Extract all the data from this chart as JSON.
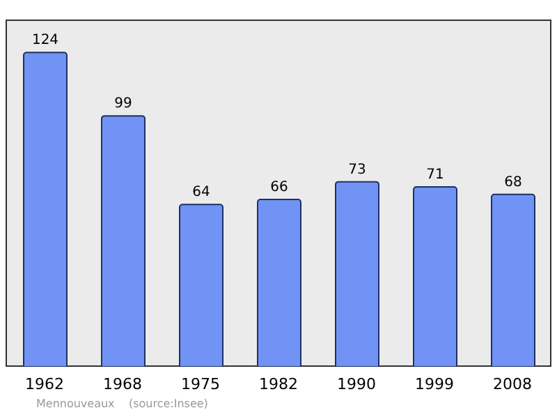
{
  "chart_data": {
    "type": "bar",
    "categories": [
      "1962",
      "1968",
      "1975",
      "1982",
      "1990",
      "1999",
      "2008"
    ],
    "values": [
      124,
      99,
      64,
      66,
      73,
      71,
      68
    ],
    "color": "#7193f5",
    "ylim": [
      0,
      137
    ],
    "data_labels": true,
    "grid": false,
    "tick_labels": "x",
    "annotations": [
      "Mennouveaux    (source:Insee)"
    ]
  }
}
